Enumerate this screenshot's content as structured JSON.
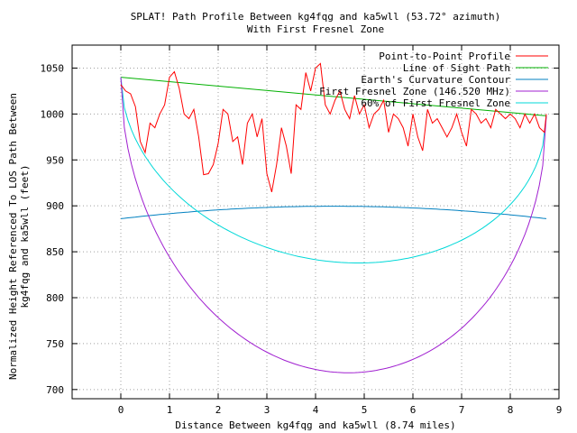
{
  "chart_data": {
    "type": "line",
    "title": "SPLAT! Path Profile Between kg4fqg and ka5wll (53.72° azimuth)",
    "subtitle": "With First Fresnel Zone",
    "xlabel": "Distance Between kg4fqg and ka5wll (8.74 miles)",
    "ylabel_line1": "Normalized Height Referenced To LOS Path Between",
    "ylabel_line2": "kg4fqg and ka5wll (feet)",
    "xlim": [
      -1,
      9
    ],
    "ylim": [
      690,
      1075
    ],
    "x_ticks": [
      0,
      1,
      2,
      3,
      4,
      5,
      6,
      7,
      8,
      9
    ],
    "y_ticks": [
      700,
      750,
      800,
      850,
      900,
      950,
      1000,
      1050
    ],
    "grid": true,
    "legend_position": "top-right",
    "series": [
      {
        "name": "Point-to-Point Profile",
        "color": "#ff0000",
        "x": [
          0,
          0.1,
          0.2,
          0.3,
          0.4,
          0.5,
          0.6,
          0.7,
          0.8,
          0.9,
          1.0,
          1.1,
          1.2,
          1.3,
          1.4,
          1.5,
          1.6,
          1.7,
          1.8,
          1.9,
          2.0,
          2.1,
          2.2,
          2.3,
          2.4,
          2.5,
          2.6,
          2.7,
          2.8,
          2.9,
          3.0,
          3.1,
          3.2,
          3.3,
          3.4,
          3.5,
          3.6,
          3.7,
          3.8,
          3.9,
          4.0,
          4.1,
          4.2,
          4.3,
          4.4,
          4.5,
          4.6,
          4.7,
          4.8,
          4.9,
          5.0,
          5.1,
          5.2,
          5.3,
          5.4,
          5.5,
          5.6,
          5.7,
          5.8,
          5.9,
          6.0,
          6.1,
          6.2,
          6.3,
          6.4,
          6.5,
          6.6,
          6.7,
          6.8,
          6.9,
          7.0,
          7.1,
          7.2,
          7.3,
          7.4,
          7.5,
          7.6,
          7.7,
          7.8,
          7.9,
          8.0,
          8.1,
          8.2,
          8.3,
          8.4,
          8.5,
          8.6,
          8.7,
          8.74
        ],
        "values": [
          1032,
          1025,
          1022,
          1008,
          970,
          958,
          990,
          985,
          1000,
          1010,
          1040,
          1046,
          1028,
          1000,
          995,
          1005,
          975,
          934,
          935,
          945,
          968,
          1005,
          1000,
          970,
          975,
          945,
          990,
          1000,
          975,
          995,
          935,
          915,
          945,
          985,
          965,
          935,
          1010,
          1005,
          1045,
          1025,
          1050,
          1055,
          1010,
          1000,
          1015,
          1025,
          1005,
          995,
          1020,
          1000,
          1010,
          985,
          1000,
          1005,
          1015,
          980,
          1000,
          995,
          985,
          965,
          1000,
          975,
          960,
          1005,
          990,
          995,
          985,
          975,
          985,
          1000,
          980,
          965,
          1005,
          1000,
          990,
          995,
          985,
          1005,
          1000,
          995,
          1000,
          995,
          985,
          1000,
          990,
          1000,
          985,
          980,
          1000
        ]
      },
      {
        "name": "Line of Sight Path",
        "color": "#00b000"
      },
      {
        "name": "Earth's Curvature Contour",
        "color": "#0080c0"
      },
      {
        "name": "First Fresnel Zone (146.520 MHz)",
        "color": "#a020d0"
      },
      {
        "name": "60% of First Fresnel Zone",
        "color": "#00d8d8"
      }
    ]
  }
}
